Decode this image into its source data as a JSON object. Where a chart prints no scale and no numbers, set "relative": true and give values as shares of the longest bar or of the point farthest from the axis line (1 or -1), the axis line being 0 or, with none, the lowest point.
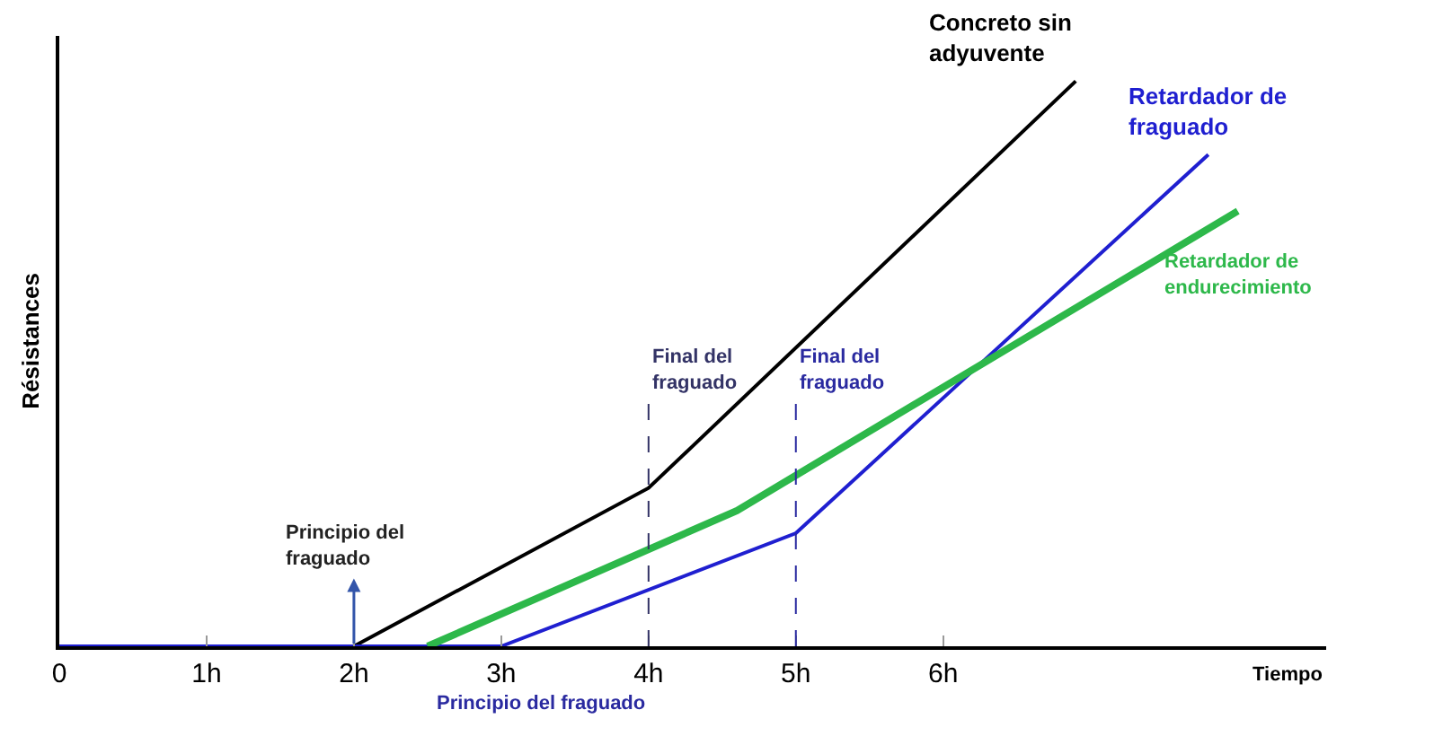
{
  "chart_data": {
    "type": "line",
    "relative": true,
    "xlabel": "Tiempo",
    "ylabel": "Résistances",
    "xlim": [
      0,
      8.6
    ],
    "xticks": [
      0,
      {
        "value": 1,
        "label": "1h"
      },
      {
        "value": 2,
        "label": "2h"
      },
      {
        "value": 3,
        "label": "3h"
      },
      {
        "value": 4,
        "label": "4h"
      },
      {
        "value": 5,
        "label": "5h"
      },
      {
        "value": 6,
        "label": "6h"
      }
    ],
    "series": [
      {
        "name": "Concreto sin adyuvente",
        "color": "#000000",
        "x": [
          2,
          4,
          6.9
        ],
        "values": [
          0,
          0.28,
          1
        ]
      },
      {
        "name": "Retardador de fraguado",
        "color": "#1f1fd0",
        "x": [
          0,
          3,
          5,
          7.8
        ],
        "values": [
          0,
          0,
          0.2,
          0.87
        ]
      },
      {
        "name": "Retardador de endurecimiento",
        "color": "#2db84a",
        "x": [
          2.5,
          4.6,
          8
        ],
        "values": [
          0,
          0.24,
          0.77
        ]
      }
    ],
    "ref_lines": [
      {
        "axis": "x",
        "value": 4,
        "label": "Final del fraguado",
        "color": "#333366",
        "line_style": "dashed"
      },
      {
        "axis": "x",
        "value": 5,
        "label": "Final del fraguado",
        "color": "#2a2aa0",
        "line_style": "dashed"
      }
    ],
    "annotations": [
      {
        "text": "Principio del fraguado",
        "x": 2,
        "y": 0
      },
      "Principio del fraguado"
    ],
    "legend": false,
    "grid": false,
    "marker": "none",
    "line_style": "solid"
  }
}
